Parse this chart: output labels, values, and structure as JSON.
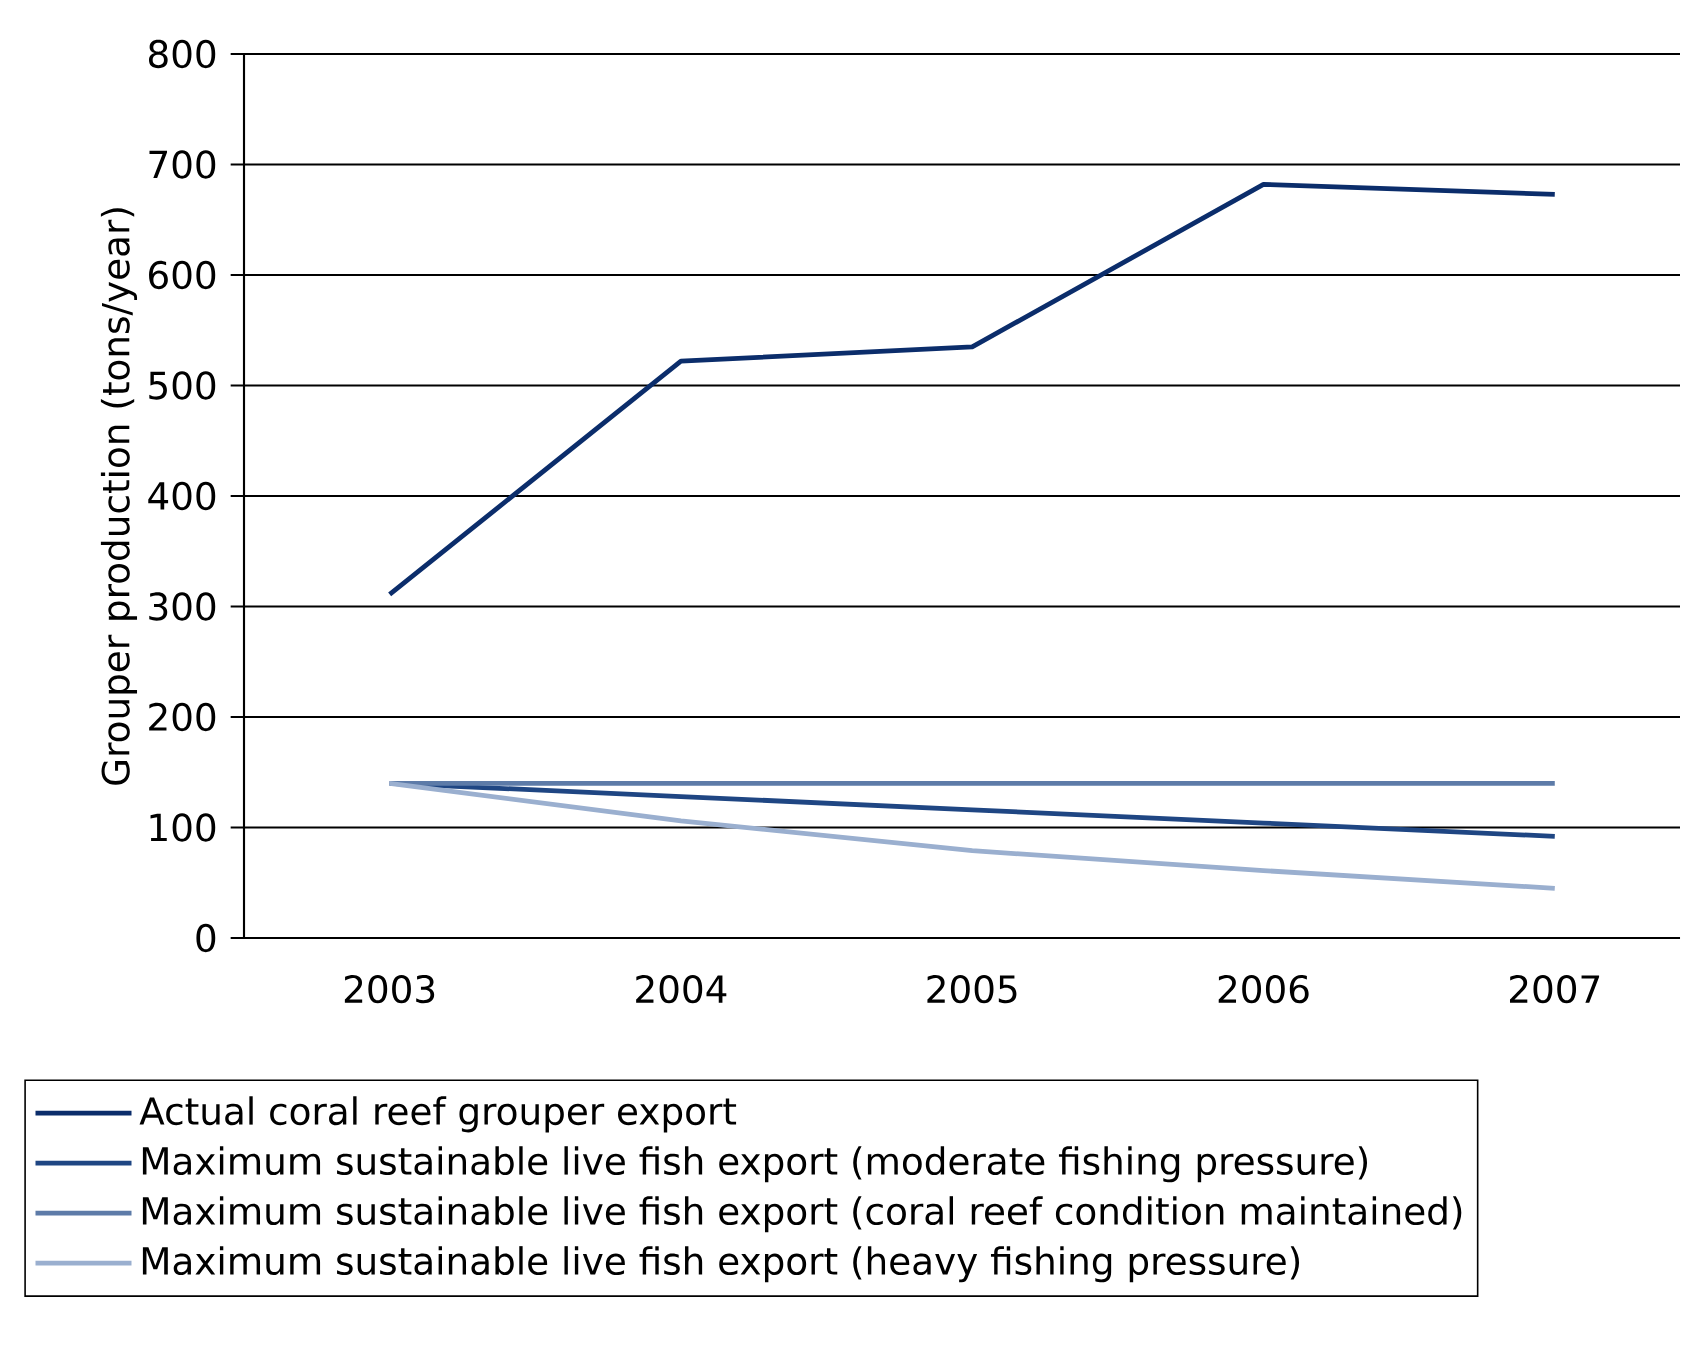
{
  "chart_data": {
    "type": "line",
    "ylabel": "Grouper production (tons/year)",
    "categories": [
      "2003",
      "2004",
      "2005",
      "2006",
      "2007"
    ],
    "ylim": [
      0,
      800
    ],
    "yticks": [
      0,
      100,
      200,
      300,
      400,
      500,
      600,
      700,
      800
    ],
    "grid": "y",
    "legend": "bottom",
    "line_style": "solid",
    "marker": "none",
    "series": [
      {
        "name": "Actual coral reef grouper export",
        "color": "#0b2d6b",
        "values": [
          311,
          522,
          535,
          682,
          673
        ]
      },
      {
        "name": "Maximum sustainable live fish export (moderate fishing pressure)",
        "color": "#1f4683",
        "values": [
          140,
          128,
          116,
          104,
          92
        ]
      },
      {
        "name": "Maximum sustainable live fish export (coral reef condition maintained)",
        "color": "#5d7ba8",
        "values": [
          140,
          140,
          140,
          140,
          140
        ]
      },
      {
        "name": "Maximum sustainable live fish export (heavy fishing pressure)",
        "color": "#9aafcf",
        "values": [
          140,
          106,
          79,
          61,
          45
        ]
      }
    ]
  }
}
